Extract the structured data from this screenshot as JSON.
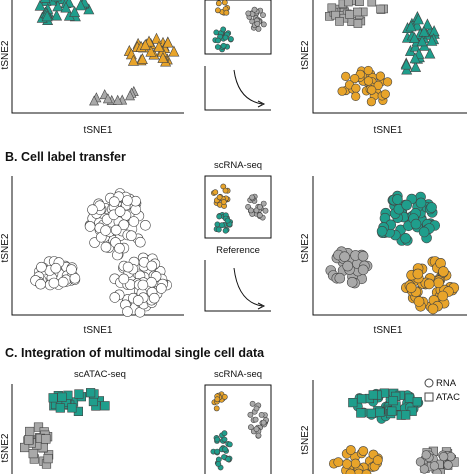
{
  "colors": {
    "teal": "#1f9e8c",
    "orange": "#e8a42a",
    "gray": "#a9a9a9",
    "white": "#ffffff",
    "stroke": "#444444"
  },
  "axes": {
    "x": "tSNE1",
    "y": "tSNE2"
  },
  "sections": [
    {
      "title": "",
      "mini_label": "",
      "mini_caption": ""
    },
    {
      "title": "B. Cell label transfer",
      "mini_label": "scRNA-seq",
      "mini_caption": "Reference"
    },
    {
      "title": "C. Integration of multimodal single cell data",
      "left_label": "scATAC-seq",
      "mini_label": "scRNA-seq",
      "legend": [
        {
          "shape": "circle",
          "label": "RNA"
        },
        {
          "shape": "square",
          "label": "ATAC"
        }
      ]
    }
  ]
}
